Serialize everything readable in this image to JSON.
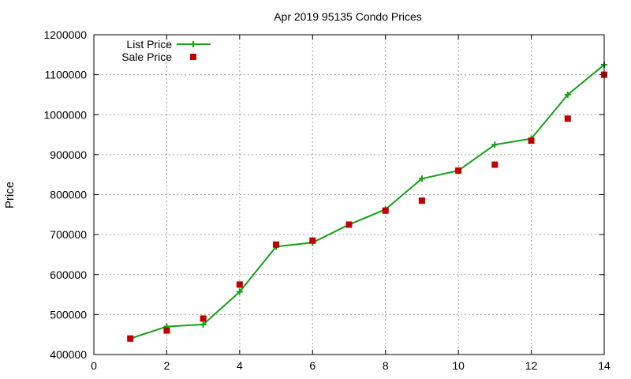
{
  "chart_data": {
    "type": "line",
    "title": "Apr 2019 95135 Condo Prices",
    "xlabel": "",
    "ylabel": "Price",
    "xlim": [
      0,
      14
    ],
    "ylim": [
      400000,
      1200000
    ],
    "xticks": [
      0,
      2,
      4,
      6,
      8,
      10,
      12,
      14
    ],
    "yticks": [
      400000,
      500000,
      600000,
      700000,
      800000,
      900000,
      1000000,
      1100000,
      1200000
    ],
    "grid": true,
    "legend_position": "top-left",
    "series": [
      {
        "name": "List Price",
        "style": "line+cross",
        "color": "#16a016",
        "points": [
          [
            1,
            440000
          ],
          [
            2,
            470000
          ],
          [
            3,
            475000
          ],
          [
            4,
            557000
          ],
          [
            5,
            670000
          ],
          [
            6,
            680000
          ],
          [
            7,
            725000
          ],
          [
            8,
            763000
          ],
          [
            9,
            840000
          ],
          [
            10,
            860000
          ],
          [
            11,
            925000
          ],
          [
            12,
            940000
          ],
          [
            13,
            1050000
          ],
          [
            14,
            1125000
          ]
        ]
      },
      {
        "name": "Sale Price",
        "style": "square",
        "color": "#c00000",
        "points": [
          [
            1,
            440000
          ],
          [
            2,
            460000
          ],
          [
            3,
            490000
          ],
          [
            4,
            575000
          ],
          [
            5,
            675000
          ],
          [
            6,
            685000
          ],
          [
            7,
            725000
          ],
          [
            8,
            760000
          ],
          [
            9,
            785000
          ],
          [
            10,
            860000
          ],
          [
            11,
            875000
          ],
          [
            12,
            935000
          ],
          [
            13,
            990000
          ],
          [
            14,
            1100000
          ]
        ]
      }
    ]
  }
}
